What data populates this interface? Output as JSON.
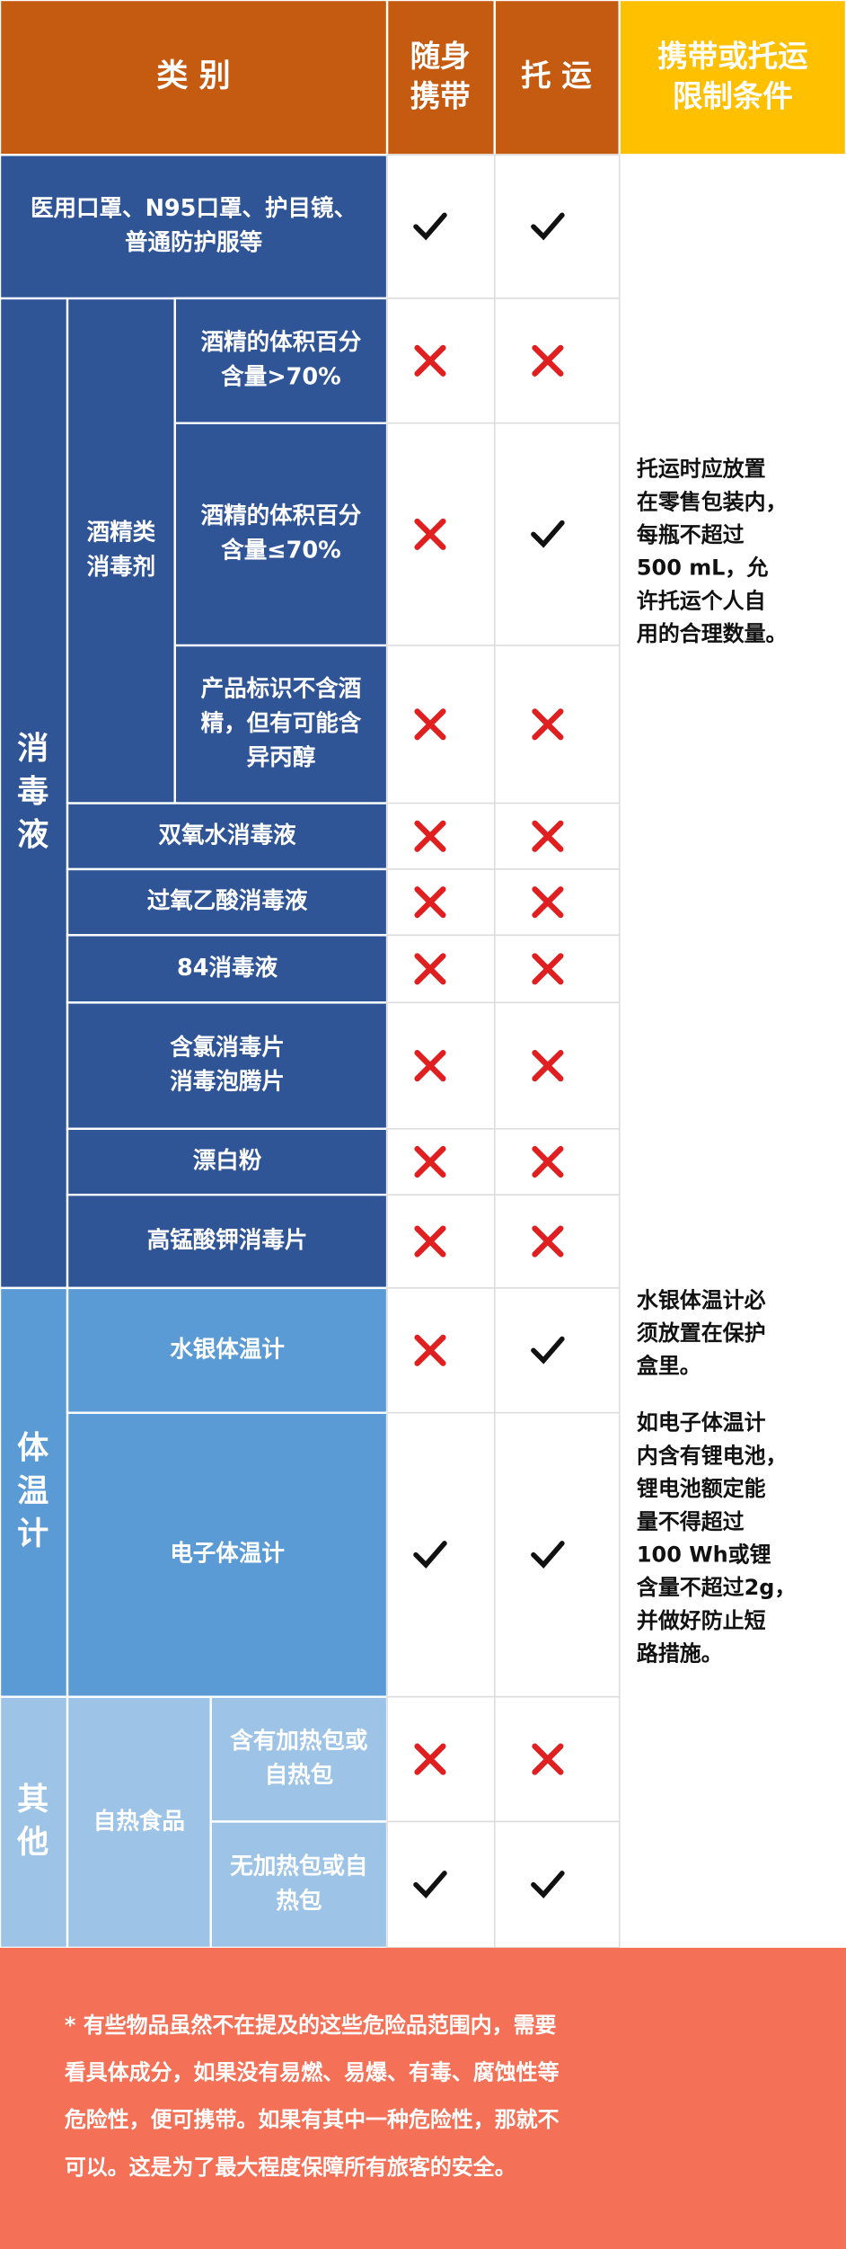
{
  "header": {
    "category": "类 别",
    "carry": [
      "随身",
      "携带"
    ],
    "checked": "托 运",
    "conditions": [
      "携带或托运",
      "限制条件"
    ]
  },
  "rows": [
    {
      "label": [
        "医用口罩、N95口罩、护目镜、",
        "普通防护服等"
      ],
      "carry": true,
      "checked": true
    },
    {
      "label": [
        "酒精的体积百分",
        "含量>70%"
      ],
      "carry": false,
      "checked": false
    },
    {
      "label": [
        "酒精的体积百分",
        "含量≤70%"
      ],
      "carry": false,
      "checked": true
    },
    {
      "label": [
        "产品标识不含酒",
        "精，但有可能含",
        "异丙醇"
      ],
      "carry": false,
      "checked": false
    },
    {
      "label": [
        "双氧水消毒液"
      ],
      "carry": false,
      "checked": false
    },
    {
      "label": [
        "过氧乙酸消毒液"
      ],
      "carry": false,
      "checked": false
    },
    {
      "label": [
        "84消毒液"
      ],
      "carry": false,
      "checked": false
    },
    {
      "label": [
        "含氯消毒片",
        "消毒泡腾片"
      ],
      "carry": false,
      "checked": false
    },
    {
      "label": [
        "漂白粉"
      ],
      "carry": false,
      "checked": false
    },
    {
      "label": [
        "高锰酸钾消毒片"
      ],
      "carry": false,
      "checked": false
    },
    {
      "label": [
        "水银体温计"
      ],
      "carry": false,
      "checked": true
    },
    {
      "label": [
        "电子体温计"
      ],
      "carry": true,
      "checked": true
    },
    {
      "label": [
        "含有加热包或",
        "自热包"
      ],
      "carry": false,
      "checked": false
    },
    {
      "label": [
        "无加热包或自",
        "热包"
      ],
      "carry": true,
      "checked": true
    }
  ],
  "groups": [
    {
      "label": [
        "消",
        "毒",
        "液"
      ]
    },
    {
      "label": [
        "体",
        "温",
        "计"
      ]
    },
    {
      "label": [
        "其",
        "他"
      ]
    }
  ],
  "subgroups": [
    {
      "label": [
        "酒精类",
        "消毒剂"
      ]
    },
    {
      "label": [
        "自热食品"
      ]
    }
  ],
  "conditions": [
    {
      "lines": [
        "托运时应放置",
        "在零售包装内，",
        "每瓶不超过",
        "500 mL，允",
        "许托运个人自",
        "用的合理数量。"
      ]
    },
    {
      "lines": [
        "水银体温计必",
        "须放置在保护",
        "盒里。"
      ]
    },
    {
      "lines": [
        "如电子体温计",
        "内含有锂电池，",
        "锂电池额定能",
        "量不得超过",
        "100 Wh或锂",
        "含量不超过2g，",
        "并做好防止短",
        "路措施。"
      ]
    }
  ],
  "footer": [
    "*  有些物品虽然不在提及的这些危险品范围内，需要",
    "看具体成分，如果没有易燃、易爆、有毒、腐蚀性等",
    "危险性，便可携带。如果有其中一种危险性，那就不",
    "可以。这是为了最大程度保障所有旅客的安全。"
  ]
}
